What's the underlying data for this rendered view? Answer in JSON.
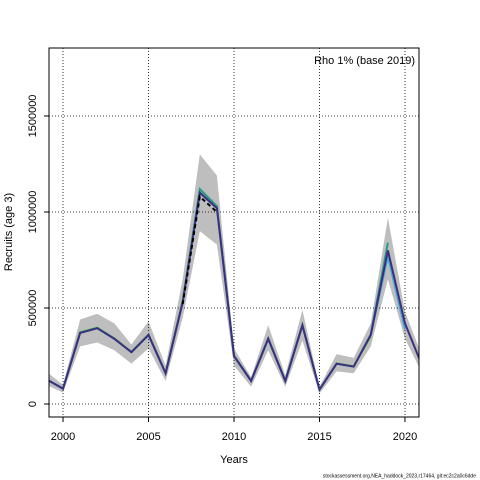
{
  "chart_data": {
    "type": "line",
    "annotation": "Rho 1% (base 2019)",
    "xlabel": "Years",
    "ylabel": "Recruits (age 3)",
    "footer": "stockassessment.org,NEA_haddock_2023,r17464, git:ec2c2a0c6dde",
    "x": [
      1999,
      2000,
      2001,
      2002,
      2003,
      2004,
      2005,
      2006,
      2007,
      2008,
      2009,
      2010,
      2011,
      2012,
      2013,
      2014,
      2015,
      2016,
      2017,
      2018,
      2019,
      2020,
      2021
    ],
    "band_color": "#bebebe",
    "upper": [
      170000,
      100000,
      440000,
      470000,
      420000,
      310000,
      430000,
      200000,
      650000,
      1300000,
      1190000,
      290000,
      140000,
      410000,
      150000,
      490000,
      90000,
      260000,
      240000,
      420000,
      970000,
      480000,
      250000
    ],
    "lower": [
      100000,
      60000,
      300000,
      320000,
      280000,
      210000,
      290000,
      120000,
      450000,
      900000,
      830000,
      200000,
      90000,
      280000,
      90000,
      330000,
      55000,
      170000,
      160000,
      300000,
      650000,
      340000,
      160000
    ],
    "series": [
      {
        "color": "#7ac943",
        "dashed": false,
        "values": [
          130000,
          80000,
          375000,
          398000,
          342000,
          272000,
          362000,
          162000,
          540000,
          1110000,
          1025000,
          252000,
          121000,
          342000,
          121000,
          412000,
          76000,
          212000,
          197000,
          350000,
          null,
          null,
          null
        ]
      },
      {
        "color": "#2a9a8a",
        "dashed": false,
        "values": [
          130000,
          80000,
          372000,
          396000,
          340000,
          270000,
          360000,
          160000,
          535000,
          1120000,
          1030000,
          250000,
          120000,
          340000,
          120000,
          410000,
          75000,
          210000,
          195000,
          362000,
          840000,
          null,
          null
        ]
      },
      {
        "color": "#46a6d8",
        "dashed": false,
        "values": [
          130000,
          80000,
          370000,
          395000,
          340000,
          270000,
          360000,
          160000,
          530000,
          1100000,
          1020000,
          250000,
          120000,
          340000,
          120000,
          410000,
          75000,
          210000,
          195000,
          360000,
          770000,
          390000,
          null
        ]
      },
      {
        "color": "#3b2f7e",
        "dashed": false,
        "values": [
          130000,
          80000,
          370000,
          395000,
          340000,
          270000,
          360000,
          160000,
          530000,
          1100000,
          1020000,
          250000,
          120000,
          340000,
          120000,
          410000,
          75000,
          210000,
          195000,
          360000,
          800000,
          420000,
          200000
        ]
      },
      {
        "color": "#000000",
        "dashed": true,
        "values": [
          null,
          null,
          null,
          null,
          null,
          null,
          null,
          null,
          520000,
          1080000,
          1000000,
          null,
          null,
          null,
          null,
          null,
          null,
          null,
          null,
          null,
          null,
          null,
          null
        ]
      }
    ],
    "xlim": [
      1999.18,
      2020.82
    ],
    "xticks": [
      2000,
      2005,
      2010,
      2015,
      2020
    ],
    "ylim": [
      -67700,
      1854000
    ],
    "yticks": [
      0,
      500000,
      1000000,
      1500000
    ],
    "grid": true
  }
}
